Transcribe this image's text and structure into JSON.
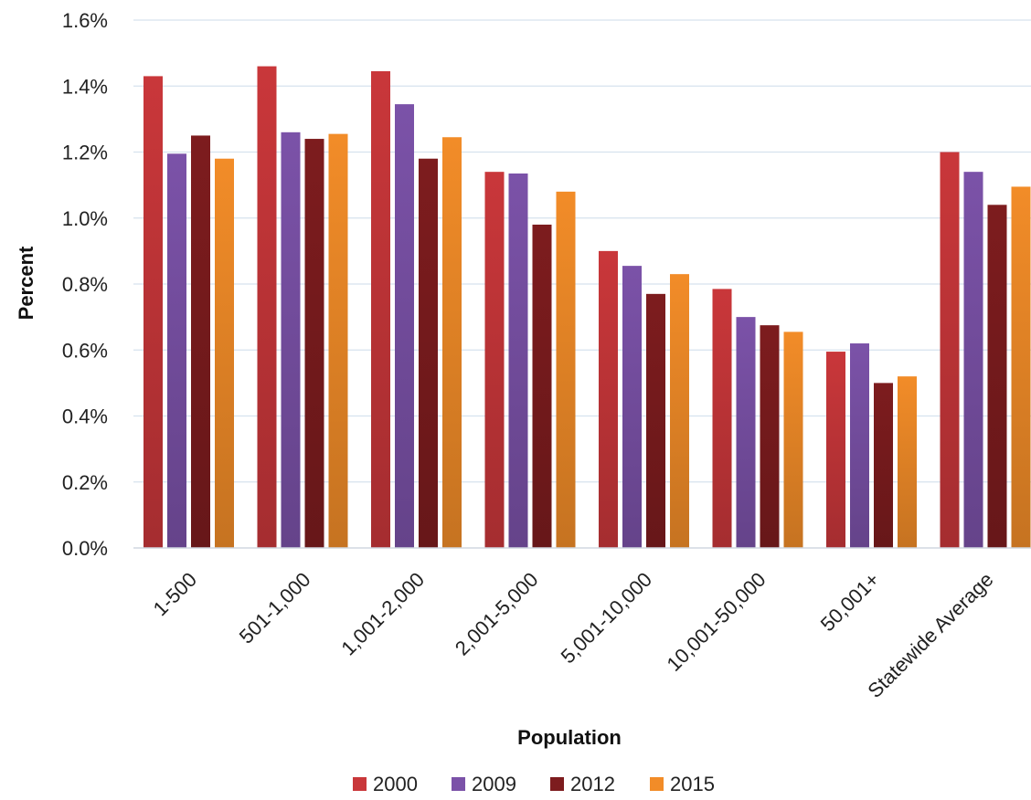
{
  "chart_data": {
    "type": "bar",
    "xlabel": "Population",
    "ylabel": "Percent",
    "ylim": [
      0,
      1.6
    ],
    "yticks": [
      "0.0%",
      "0.2%",
      "0.4%",
      "0.6%",
      "0.8%",
      "1.0%",
      "1.2%",
      "1.4%",
      "1.6%"
    ],
    "grid": true,
    "legend_position": "bottom",
    "categories": [
      "1-500",
      "501-1,000",
      "1,001-2,000",
      "2,001-5,000",
      "5,001-10,000",
      "10,001-50,000",
      "50,001+",
      "Statewide Average"
    ],
    "series": [
      {
        "name": "2000",
        "color": "#c9373a",
        "values": [
          1.43,
          1.46,
          1.445,
          1.14,
          0.9,
          0.785,
          0.595,
          1.2
        ]
      },
      {
        "name": "2009",
        "color": "#7b52a8",
        "values": [
          1.195,
          1.26,
          1.345,
          1.135,
          0.855,
          0.7,
          0.62,
          1.14
        ]
      },
      {
        "name": "2012",
        "color": "#7d1c1e",
        "values": [
          1.25,
          1.24,
          1.18,
          0.98,
          0.77,
          0.675,
          0.5,
          1.04
        ]
      },
      {
        "name": "2015",
        "color": "#f28c28",
        "values": [
          1.18,
          1.255,
          1.245,
          1.08,
          0.83,
          0.655,
          0.52,
          1.095
        ]
      }
    ]
  }
}
